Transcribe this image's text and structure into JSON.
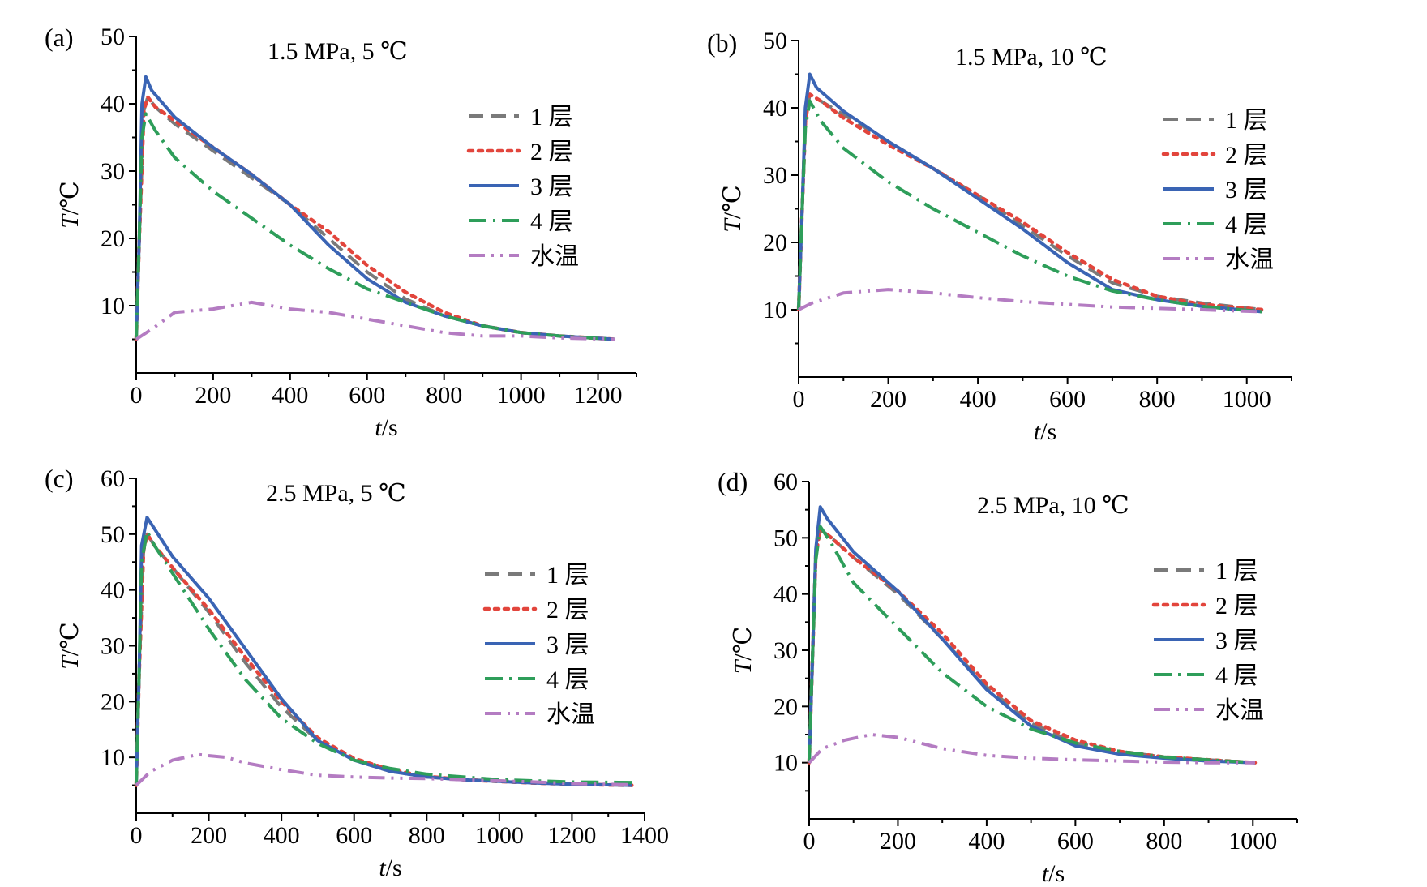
{
  "colors": {
    "layer1": "#7a7a7a",
    "layer2": "#e2453c",
    "layer3": "#3a64b4",
    "layer4": "#2e9e5a",
    "water": "#b47cc2",
    "axis": "#000000"
  },
  "chart_data": [
    {
      "type": "line",
      "panel_label": "(a)",
      "title": "1.5 MPa, 5 ℃",
      "xlabel": "t/s",
      "ylabel": "T/℃",
      "xlim": [
        0,
        1300
      ],
      "ylim": [
        0,
        50
      ],
      "xticks": [
        0,
        200,
        400,
        600,
        800,
        1000,
        1200
      ],
      "yticks": [
        10,
        20,
        30,
        40,
        50
      ],
      "legend_position": "right",
      "series": [
        {
          "name": "1 层",
          "style": "layer1",
          "x": [
            0,
            8,
            20,
            30,
            50,
            100,
            200,
            300,
            400,
            500,
            600,
            700,
            800,
            900,
            1000,
            1100,
            1245
          ],
          "y": [
            5,
            20,
            39,
            41,
            39.5,
            37,
            33,
            29,
            25,
            20,
            15,
            11,
            8.5,
            7,
            6,
            5.5,
            5
          ]
        },
        {
          "name": "2 层",
          "style": "layer2",
          "x": [
            0,
            8,
            20,
            30,
            50,
            100,
            200,
            300,
            400,
            500,
            600,
            700,
            800,
            900,
            1000,
            1100,
            1245
          ],
          "y": [
            5,
            20,
            39,
            41,
            39.5,
            37.5,
            33.5,
            29.5,
            25,
            21,
            16,
            12,
            9,
            7,
            6,
            5.5,
            5
          ]
        },
        {
          "name": "3 层",
          "style": "layer3",
          "x": [
            0,
            8,
            15,
            25,
            40,
            100,
            200,
            300,
            400,
            500,
            600,
            700,
            800,
            900,
            1000,
            1100,
            1245
          ],
          "y": [
            5,
            20,
            40,
            44,
            42,
            38,
            33.5,
            29.5,
            25,
            19,
            14,
            10.5,
            8.5,
            7,
            6,
            5.5,
            5
          ]
        },
        {
          "name": "4 层",
          "style": "layer4",
          "x": [
            0,
            8,
            15,
            25,
            50,
            100,
            200,
            300,
            400,
            500,
            600,
            700,
            800,
            900,
            1000,
            1100,
            1245
          ],
          "y": [
            5,
            20,
            35,
            38.5,
            36,
            32,
            27,
            23,
            19,
            15.5,
            12.5,
            10.5,
            8.5,
            7,
            6,
            5.5,
            5
          ]
        },
        {
          "name": "水温",
          "style": "water",
          "x": [
            0,
            40,
            100,
            200,
            300,
            400,
            500,
            600,
            700,
            800,
            900,
            1000,
            1100,
            1245
          ],
          "y": [
            5,
            6.5,
            9,
            9.5,
            10.5,
            9.5,
            9,
            8,
            7,
            6,
            5.5,
            5.5,
            5.2,
            5
          ]
        }
      ]
    },
    {
      "type": "line",
      "panel_label": "(b)",
      "title": "1.5 MPa, 10 ℃",
      "xlabel": "t/s",
      "ylabel": "T/℃",
      "xlim": [
        0,
        1100
      ],
      "ylim": [
        0,
        50
      ],
      "xticks": [
        0,
        200,
        400,
        600,
        800,
        1000
      ],
      "yticks": [
        10,
        20,
        30,
        40,
        50
      ],
      "legend_position": "right",
      "series": [
        {
          "name": "1 层",
          "style": "layer1",
          "x": [
            0,
            8,
            15,
            25,
            50,
            100,
            200,
            300,
            400,
            500,
            600,
            700,
            800,
            900,
            1035
          ],
          "y": [
            10,
            25,
            38,
            42,
            41,
            39,
            35,
            31,
            27,
            22.5,
            18,
            14,
            12,
            11,
            10
          ]
        },
        {
          "name": "2 层",
          "style": "layer2",
          "x": [
            0,
            8,
            15,
            25,
            50,
            100,
            200,
            300,
            400,
            500,
            600,
            700,
            800,
            900,
            1035
          ],
          "y": [
            10,
            25,
            38,
            42,
            41,
            38.5,
            34.5,
            31,
            27,
            23,
            18.5,
            14.5,
            12,
            10.8,
            10
          ]
        },
        {
          "name": "3 层",
          "style": "layer3",
          "x": [
            0,
            8,
            15,
            25,
            40,
            100,
            200,
            300,
            400,
            500,
            600,
            700,
            800,
            900,
            1035
          ],
          "y": [
            10,
            25,
            40,
            45,
            43,
            39.5,
            35,
            31,
            26.5,
            22,
            17,
            13,
            11.5,
            10.5,
            9.7
          ]
        },
        {
          "name": "4 层",
          "style": "layer4",
          "x": [
            0,
            8,
            15,
            25,
            50,
            100,
            200,
            300,
            400,
            500,
            600,
            700,
            800,
            900,
            1035
          ],
          "y": [
            10,
            25,
            37,
            41,
            38,
            34,
            29,
            25,
            21.5,
            18,
            15,
            12.8,
            11.5,
            10.5,
            9.7
          ]
        },
        {
          "name": "水温",
          "style": "water",
          "x": [
            0,
            30,
            100,
            200,
            300,
            400,
            500,
            600,
            700,
            800,
            900,
            1035
          ],
          "y": [
            10,
            11,
            12.5,
            13,
            12.5,
            11.8,
            11.2,
            10.8,
            10.4,
            10.2,
            10,
            9.7
          ]
        }
      ]
    },
    {
      "type": "line",
      "panel_label": "(c)",
      "title": "2.5 MPa, 5 ℃",
      "xlabel": "t/s",
      "ylabel": "T/℃",
      "xlim": [
        0,
        1400
      ],
      "ylim": [
        0,
        60
      ],
      "xticks": [
        0,
        200,
        400,
        600,
        800,
        1000,
        1200,
        1400
      ],
      "yticks": [
        10,
        20,
        30,
        40,
        50,
        60
      ],
      "legend_position": "right",
      "series": [
        {
          "name": "1 层",
          "style": "layer1",
          "x": [
            0,
            8,
            20,
            30,
            50,
            100,
            200,
            300,
            400,
            500,
            600,
            700,
            800,
            900,
            1000,
            1100,
            1200,
            1365
          ],
          "y": [
            5,
            25,
            47,
            50,
            48,
            44,
            36,
            27,
            19,
            13,
            9.5,
            7.5,
            6.5,
            6,
            5.8,
            5.5,
            5.2,
            5
          ]
        },
        {
          "name": "2 层",
          "style": "layer2",
          "x": [
            0,
            8,
            20,
            30,
            50,
            100,
            200,
            300,
            400,
            500,
            600,
            700,
            800,
            900,
            1000,
            1100,
            1200,
            1365
          ],
          "y": [
            5,
            25,
            47,
            50,
            48,
            44,
            36.5,
            28,
            20,
            13.5,
            9.8,
            7.8,
            6.6,
            6,
            5.7,
            5.4,
            5.2,
            5
          ]
        },
        {
          "name": "3 层",
          "style": "layer3",
          "x": [
            0,
            8,
            15,
            30,
            50,
            100,
            200,
            300,
            400,
            500,
            600,
            700,
            800,
            900,
            1000,
            1100,
            1200,
            1365
          ],
          "y": [
            5,
            25,
            48,
            53,
            51,
            46,
            38.5,
            29.5,
            20.5,
            13,
            9.5,
            7.5,
            6.5,
            6,
            5.7,
            5.4,
            5.2,
            5
          ]
        },
        {
          "name": "4 层",
          "style": "layer4",
          "x": [
            0,
            8,
            15,
            30,
            50,
            100,
            200,
            300,
            400,
            500,
            600,
            700,
            800,
            900,
            1000,
            1100,
            1200,
            1365
          ],
          "y": [
            5,
            25,
            45,
            50.5,
            48,
            43,
            33,
            24,
            17,
            12.5,
            9.5,
            8,
            7,
            6.5,
            6,
            5.8,
            5.6,
            5.5
          ]
        },
        {
          "name": "水温",
          "style": "water",
          "x": [
            0,
            40,
            100,
            170,
            250,
            300,
            400,
            500,
            600,
            700,
            800,
            900,
            1000,
            1100,
            1200,
            1365
          ],
          "y": [
            5,
            7.5,
            9.5,
            10.5,
            10,
            9,
            7.8,
            6.8,
            6.5,
            6.3,
            6.2,
            6,
            5.8,
            5.6,
            5.3,
            5.1
          ]
        }
      ]
    },
    {
      "type": "line",
      "panel_label": "(d)",
      "title": "2.5 MPa, 10 ℃",
      "xlabel": "t/s",
      "ylabel": "T/℃",
      "xlim": [
        0,
        1100
      ],
      "ylim": [
        0,
        60
      ],
      "xticks": [
        0,
        200,
        400,
        600,
        800,
        1000
      ],
      "yticks": [
        10,
        20,
        30,
        40,
        50,
        60
      ],
      "legend_position": "right",
      "series": [
        {
          "name": "1 层",
          "style": "layer1",
          "x": [
            0,
            8,
            15,
            25,
            50,
            100,
            200,
            300,
            400,
            500,
            600,
            700,
            800,
            900,
            1005
          ],
          "y": [
            10,
            30,
            47,
            51.5,
            50,
            46.5,
            40,
            32,
            23.5,
            17,
            13.5,
            12,
            11,
            10.5,
            10
          ]
        },
        {
          "name": "2 层",
          "style": "layer2",
          "x": [
            0,
            8,
            15,
            25,
            50,
            100,
            200,
            300,
            400,
            500,
            600,
            700,
            800,
            900,
            1005
          ],
          "y": [
            10,
            30,
            47,
            51.5,
            50,
            46.5,
            40.5,
            33,
            24,
            17.5,
            14,
            12,
            11,
            10.5,
            10
          ]
        },
        {
          "name": "3 层",
          "style": "layer3",
          "x": [
            0,
            8,
            15,
            25,
            40,
            100,
            200,
            300,
            400,
            500,
            600,
            700,
            800,
            900,
            1005
          ],
          "y": [
            10,
            30,
            48,
            55.5,
            53.5,
            47.5,
            40.5,
            32,
            23,
            16.5,
            13,
            11.5,
            10.8,
            10.3,
            10
          ]
        },
        {
          "name": "4 层",
          "style": "layer4",
          "x": [
            0,
            8,
            15,
            25,
            50,
            100,
            200,
            300,
            400,
            500,
            600,
            700,
            800,
            900,
            1005
          ],
          "y": [
            10,
            30,
            46,
            52,
            49,
            42,
            34,
            26,
            20,
            16,
            13.5,
            12,
            11,
            10.5,
            10
          ]
        },
        {
          "name": "水温",
          "style": "water",
          "x": [
            0,
            30,
            80,
            140,
            200,
            300,
            400,
            500,
            600,
            700,
            800,
            900,
            1005
          ],
          "y": [
            10,
            12.5,
            14,
            15,
            14.5,
            12.5,
            11.3,
            10.8,
            10.5,
            10.3,
            10.1,
            10,
            10
          ]
        }
      ]
    }
  ]
}
